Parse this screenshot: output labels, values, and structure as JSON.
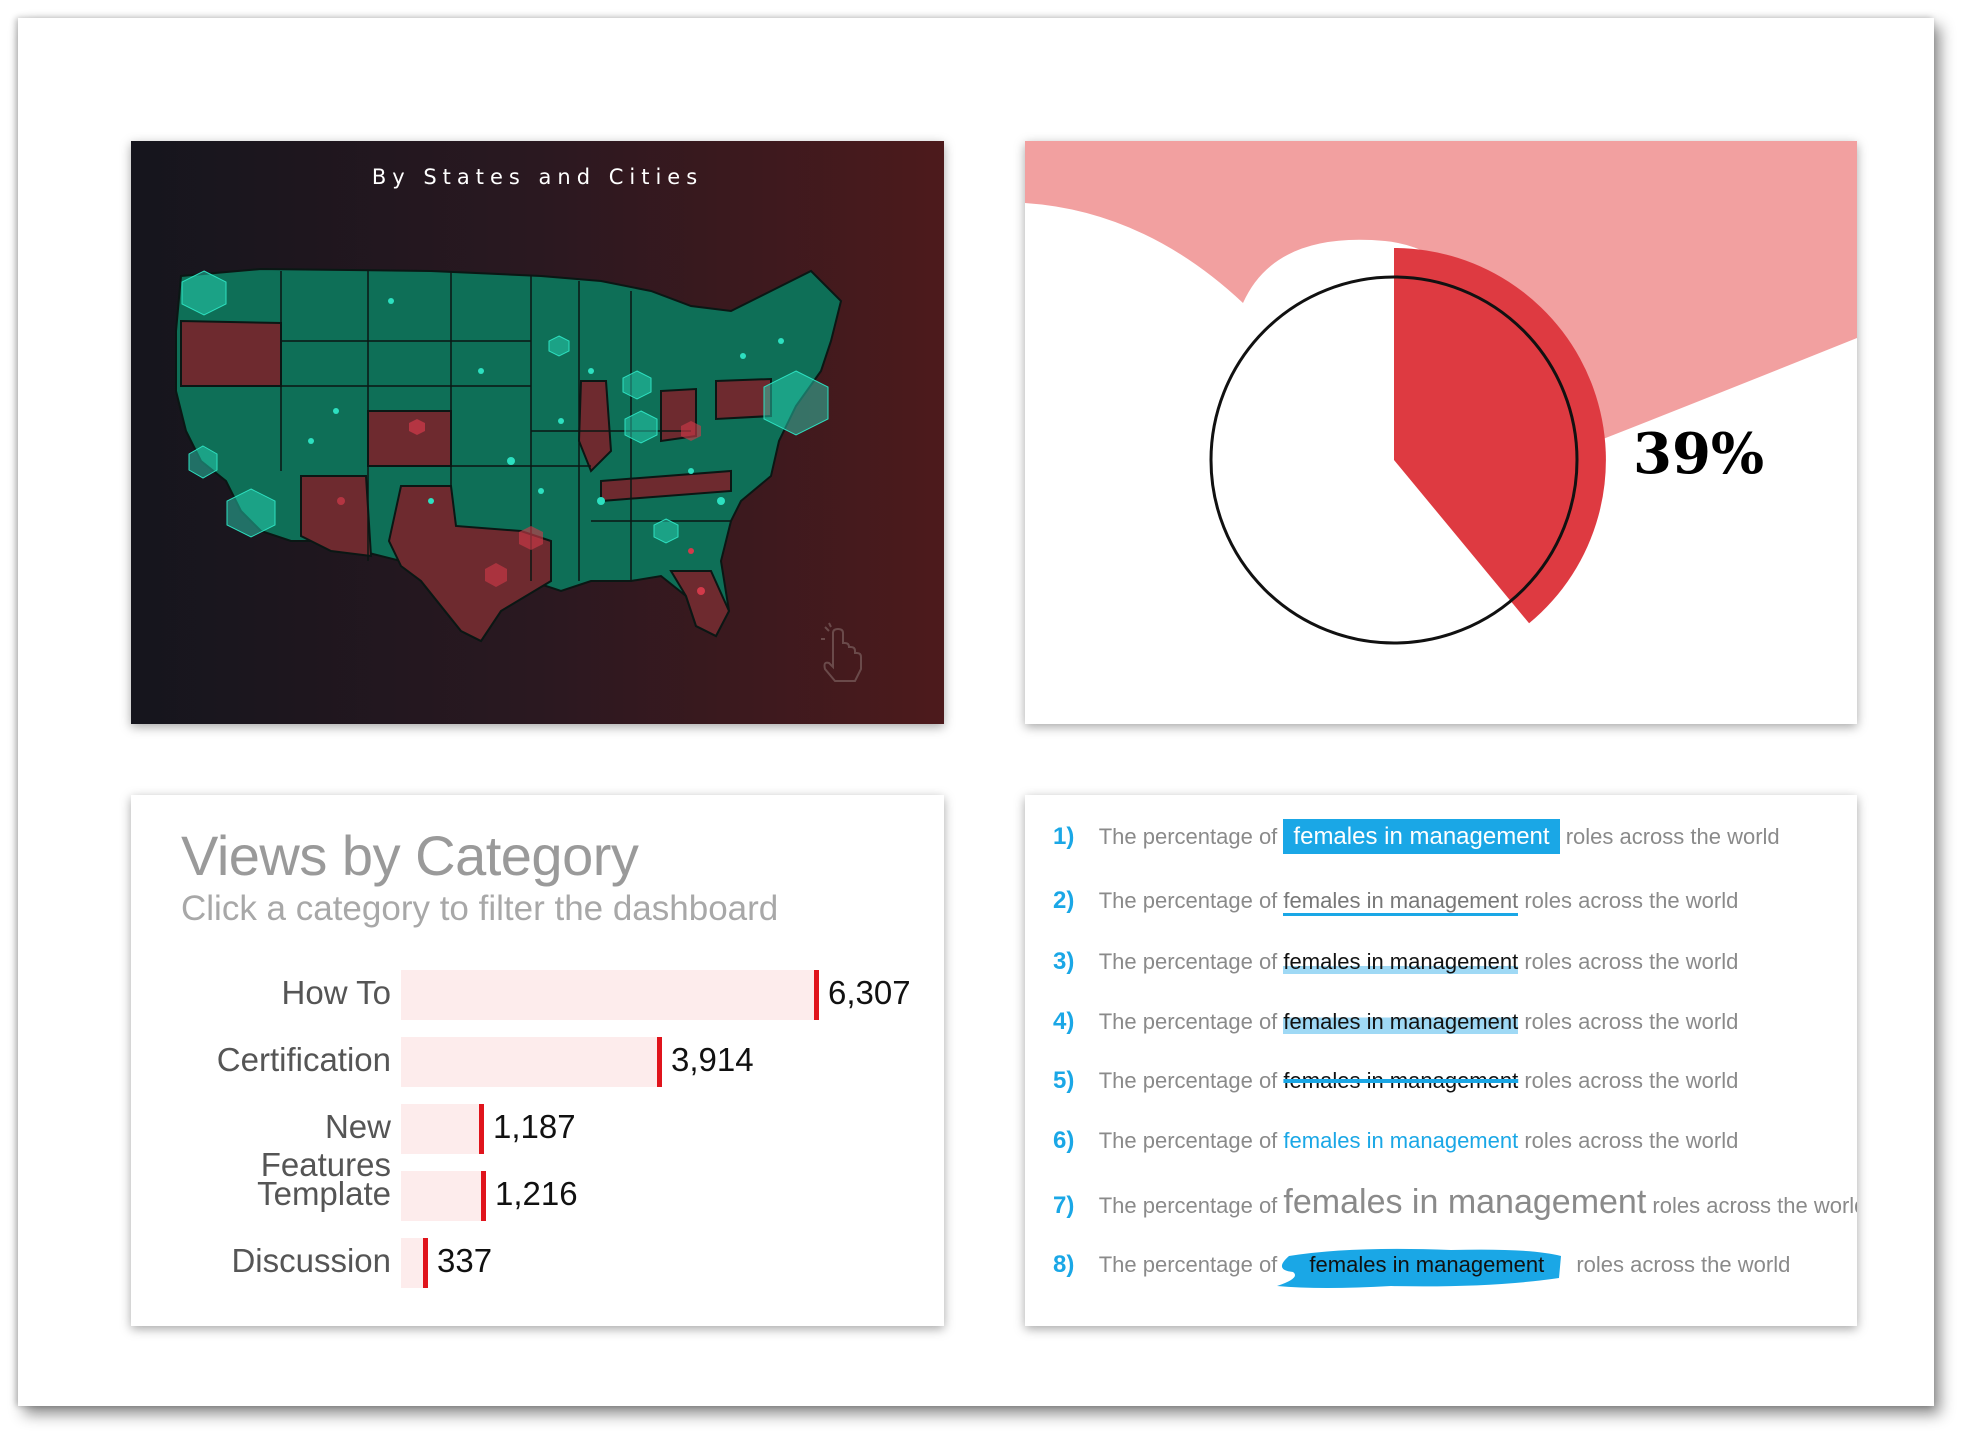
{
  "map": {
    "title": "By States and Cities",
    "colors": {
      "state": "#0e6f57",
      "highlight": "#6e2a2f",
      "bubble": "#2de0c0",
      "bubble_red": "#d23a4a"
    },
    "pointer_icon": "hand-pointer-icon"
  },
  "pie": {
    "percent_label": "39%",
    "percent": 39,
    "colors": {
      "fill": "#de3a41",
      "wave": "#f2a0a0"
    }
  },
  "views": {
    "title": "Views by Category",
    "subtitle": "Click a category to filter the dashboard",
    "accent": "#e0141c",
    "bar_bg": "#fdecec"
  },
  "chart_data": {
    "type": "bar",
    "orientation": "horizontal",
    "title": "Views by Category",
    "subtitle": "Click a category to filter the dashboard",
    "categories": [
      "How To",
      "Certification",
      "New Features",
      "Template",
      "Discussion"
    ],
    "values": [
      6307,
      3914,
      1187,
      1216,
      337
    ],
    "value_labels": [
      "6,307",
      "3,914",
      "1,187",
      "1,216",
      "337"
    ],
    "xlim": [
      0,
      6307
    ]
  },
  "highlights": {
    "accent": "#1aa7e6",
    "rows": [
      {
        "num": "1)",
        "pre": "The percentage of",
        "hl": "females in management",
        "post": "roles across the world"
      },
      {
        "num": "2)",
        "pre": "The percentage of",
        "hl": "females in management",
        "post": "roles across the world"
      },
      {
        "num": "3)",
        "pre": "The percentage of",
        "hl": "females in management",
        "post": "roles across the world"
      },
      {
        "num": "4)",
        "pre": "The percentage of",
        "hl": "females in management",
        "post": "roles across the world"
      },
      {
        "num": "5)",
        "pre": "The percentage of",
        "hl": "females in management",
        "post": "roles across the world"
      },
      {
        "num": "6)",
        "pre": "The percentage of",
        "hl": "females in management",
        "post": "roles across the world"
      },
      {
        "num": "7)",
        "pre": "The percentage of",
        "hl": "females in management",
        "post": "roles across the world"
      },
      {
        "num": "8)",
        "pre": "The percentage of",
        "hl": "females in management",
        "post": "roles across the world"
      }
    ]
  }
}
